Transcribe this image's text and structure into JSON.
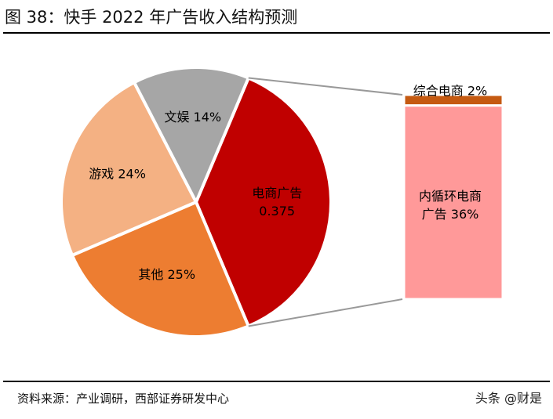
{
  "header": {
    "title": "图 38：快手 2022 年广告收入结构预测"
  },
  "footer": {
    "source": "资料来源：产业调研，西部证券研发中心",
    "watermark": "头条 @财是"
  },
  "chart_data": {
    "type": "pie",
    "title": "图 38：快手 2022 年广告收入结构预测",
    "slices": [
      {
        "label_lines": [
          "电商广告",
          "0.375"
        ],
        "value": 37.5,
        "color": "#C00000"
      },
      {
        "label_lines": [
          "其他 25%"
        ],
        "value": 25,
        "color": "#ED7D31"
      },
      {
        "label_lines": [
          "游戏 24%"
        ],
        "value": 24,
        "color": "#F4B183"
      },
      {
        "label_lines": [
          "文娱 14%"
        ],
        "value": 14,
        "color": "#A6A6A6"
      }
    ],
    "breakout": {
      "parent": "电商广告",
      "segments": [
        {
          "label_lines": [
            "综合电商 2%"
          ],
          "value": 2,
          "color": "#C55A11"
        },
        {
          "label_lines": [
            "内循环电商",
            "广告 36%"
          ],
          "value": 36,
          "color": "#FF9999"
        }
      ]
    },
    "colors": {
      "slice_border": "#ffffff",
      "connector": "#999999"
    }
  }
}
